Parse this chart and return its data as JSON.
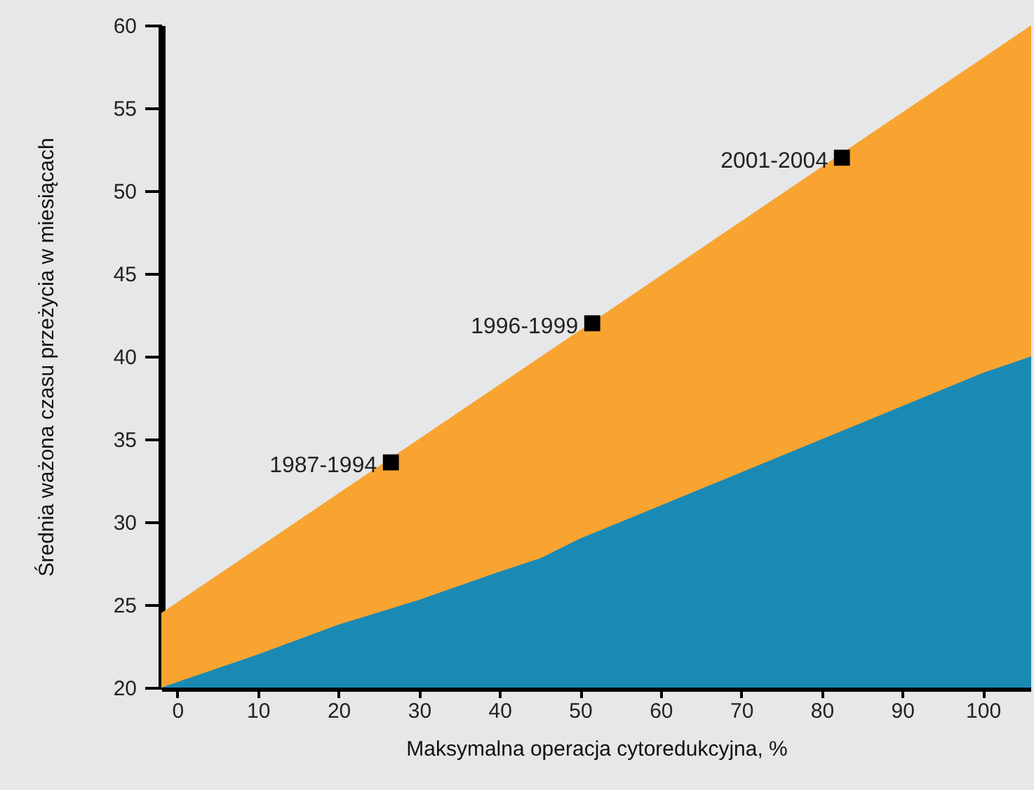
{
  "chart_data": {
    "type": "area",
    "xlabel": "Maksymalna operacja cytoredukcyjna, %",
    "ylabel": "Średnia ważona czasu przeżycia w miesiącach",
    "xlim": [
      -2,
      106
    ],
    "xticks": [
      0,
      10,
      20,
      30,
      40,
      50,
      60,
      70,
      80,
      90,
      100
    ],
    "ylim": [
      20,
      60
    ],
    "yticks": [
      20,
      25,
      30,
      35,
      40,
      45,
      50,
      55,
      60
    ],
    "grid": false,
    "series": [
      {
        "color": "#f9a431",
        "x": [
          -2,
          106
        ],
        "values": [
          24.5,
          60
        ]
      },
      {
        "color": "#1a8ab5",
        "x": [
          -2,
          10,
          20,
          30,
          40,
          45,
          50,
          60,
          70,
          80,
          90,
          100,
          106
        ],
        "values": [
          20,
          22,
          23.8,
          25.3,
          27,
          27.8,
          29,
          31,
          33,
          35,
          37,
          39,
          40
        ]
      },
      {
        "type": "scatter",
        "color": "#000000",
        "marker": "square",
        "x": [
          26.5,
          51.5,
          82.5
        ],
        "values": [
          33.6,
          42,
          52
        ]
      }
    ],
    "annotations": [
      {
        "text": "1987-1994",
        "x": 26.5,
        "y": 33.6
      },
      {
        "text": "1996-1999",
        "x": 51.5,
        "y": 42
      },
      {
        "text": "2001-2004",
        "x": 82.5,
        "y": 52
      }
    ]
  }
}
